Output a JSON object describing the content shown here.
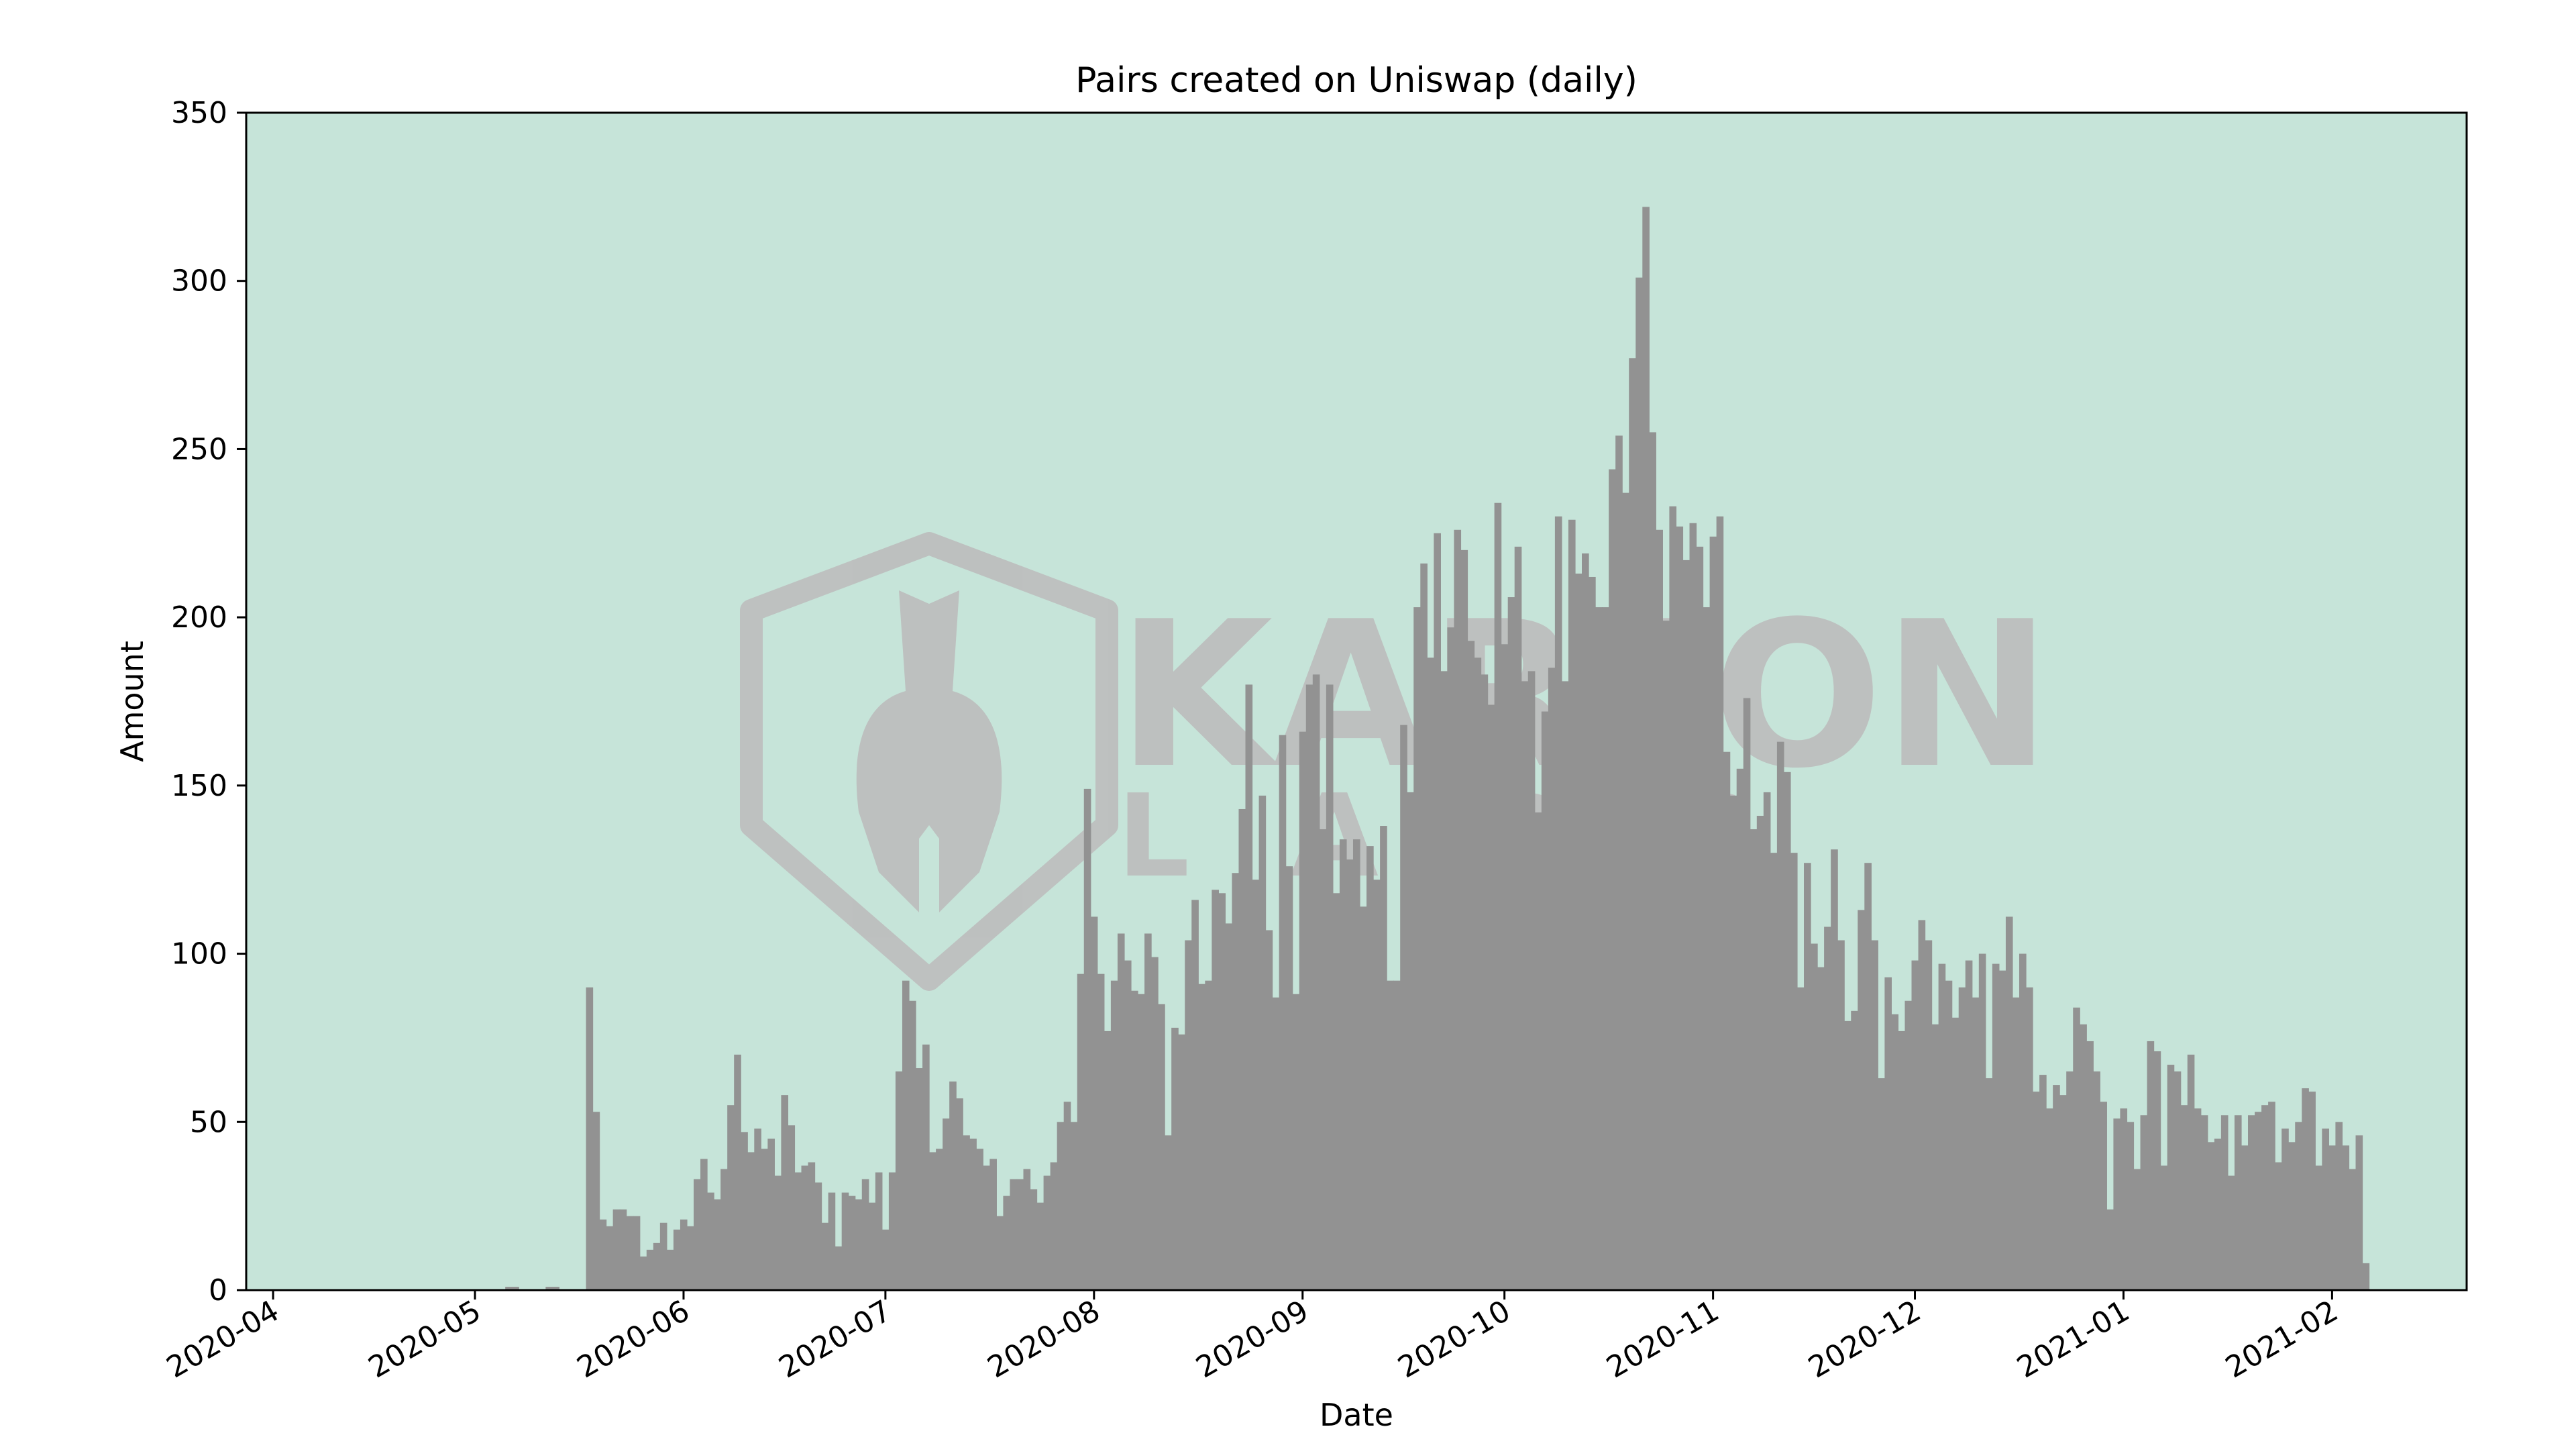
{
  "chart_data": {
    "type": "bar",
    "title": "Pairs created on Uniswap (daily)",
    "xlabel": "Date",
    "ylabel": "Amount",
    "x_start_date": "2020-04-01",
    "x_end_date": "2021-02-21",
    "bars_start_date": "2020-05-04",
    "ylim": [
      0,
      350
    ],
    "yticks": [
      0,
      50,
      100,
      150,
      200,
      250,
      300,
      350
    ],
    "xticks": [
      "2020-04",
      "2020-05",
      "2020-06",
      "2020-07",
      "2020-08",
      "2020-09",
      "2020-10",
      "2020-11",
      "2020-12",
      "2021-01",
      "2021-02"
    ],
    "grid": false,
    "background_color": "#c6e4d9",
    "bar_color": "#929292",
    "watermark": "KARTON LABS",
    "values": [
      0,
      0,
      1,
      1,
      0,
      0,
      0,
      0,
      1,
      1,
      0,
      0,
      0,
      0,
      90,
      53,
      21,
      19,
      24,
      24,
      22,
      22,
      10,
      12,
      14,
      20,
      12,
      18,
      21,
      19,
      33,
      39,
      29,
      27,
      36,
      55,
      70,
      47,
      41,
      48,
      42,
      45,
      34,
      58,
      49,
      35,
      37,
      38,
      32,
      20,
      29,
      13,
      29,
      28,
      27,
      33,
      26,
      35,
      18,
      35,
      65,
      92,
      86,
      66,
      73,
      41,
      42,
      51,
      62,
      57,
      46,
      45,
      42,
      37,
      39,
      22,
      28,
      33,
      33,
      36,
      30,
      26,
      34,
      38,
      50,
      56,
      50,
      94,
      149,
      111,
      94,
      77,
      92,
      106,
      98,
      89,
      88,
      106,
      99,
      85,
      46,
      78,
      76,
      104,
      116,
      91,
      92,
      119,
      118,
      109,
      124,
      143,
      180,
      122,
      147,
      107,
      87,
      165,
      126,
      88,
      166,
      180,
      183,
      137,
      180,
      118,
      134,
      128,
      134,
      114,
      132,
      122,
      138,
      92,
      92,
      168,
      148,
      203,
      216,
      188,
      225,
      184,
      197,
      226,
      220,
      193,
      188,
      183,
      174,
      234,
      192,
      206,
      221,
      181,
      184,
      142,
      172,
      185,
      230,
      181,
      229,
      213,
      219,
      212,
      203,
      203,
      244,
      254,
      237,
      277,
      301,
      322,
      255,
      226,
      199,
      233,
      227,
      217,
      228,
      221,
      203,
      224,
      230,
      160,
      147,
      155,
      176,
      137,
      141,
      148,
      130,
      163,
      154,
      130,
      90,
      127,
      103,
      96,
      108,
      131,
      104,
      80,
      83,
      113,
      127,
      104,
      63,
      93,
      82,
      77,
      86,
      98,
      110,
      104,
      79,
      97,
      92,
      81,
      90,
      98,
      87,
      100,
      63,
      97,
      95,
      111,
      87,
      100,
      90,
      59,
      64,
      54,
      61,
      58,
      65,
      84,
      79,
      74,
      65,
      56,
      24,
      51,
      54,
      50,
      36,
      52,
      74,
      71,
      37,
      67,
      65,
      55,
      70,
      54,
      52,
      44,
      45,
      52,
      34,
      52,
      43,
      52,
      53,
      55,
      56,
      38,
      48,
      44,
      50,
      60,
      59,
      37,
      48,
      43,
      50,
      43,
      36,
      46,
      8
    ]
  }
}
